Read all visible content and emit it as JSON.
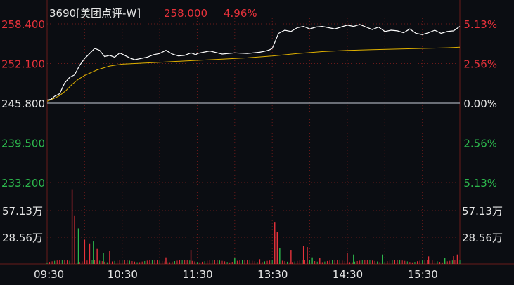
{
  "header": {
    "stock": "3690[美团点评-W]",
    "price": "258.000",
    "change_pct": "4.96%"
  },
  "colors": {
    "background": "#0b0d12",
    "up": "#e8323b",
    "down": "#2db84d",
    "price_line": "#ffffff",
    "avg_line": "#e0b100",
    "grid": "#6a1a1a",
    "text": "#e6e6e6"
  },
  "chart_data": {
    "type": "line",
    "y_left_labels": [
      "258.400",
      "252.100",
      "245.800",
      "239.500",
      "233.200"
    ],
    "y_right_labels": [
      "5.13%",
      "2.56%",
      "0.00%",
      "2.56%",
      "5.13%"
    ],
    "ylim": [
      233.2,
      258.4
    ],
    "base_price": 245.8,
    "volume_labels": [
      "57.13万",
      "28.56万"
    ],
    "volume_label_values": [
      57.13,
      28.56
    ],
    "volume_max": 85.7,
    "x_ticks": [
      "09:30",
      "10:30",
      "11:30",
      "13:30",
      "14:30",
      "15:30"
    ],
    "x_tick_minutes": [
      0,
      60,
      120,
      180,
      240,
      300
    ],
    "x_total_minutes": 330,
    "series": [
      {
        "key": "price",
        "x": [
          0,
          3,
          6,
          10,
          14,
          18,
          22,
          26,
          30,
          34,
          38,
          42,
          46,
          50,
          54,
          58,
          62,
          66,
          70,
          75,
          80,
          85,
          90,
          95,
          100,
          105,
          110,
          115,
          119,
          120,
          130,
          140,
          150,
          160,
          170,
          175,
          178,
          180,
          185,
          190,
          195,
          200,
          205,
          210,
          215,
          220,
          225,
          230,
          235,
          240,
          245,
          250,
          255,
          260,
          265,
          270,
          275,
          280,
          285,
          290,
          295,
          300,
          305,
          310,
          315,
          320,
          325,
          330
        ],
        "values": [
          246.3,
          246.4,
          246.9,
          247.3,
          249.0,
          249.9,
          250.3,
          251.8,
          252.9,
          253.7,
          254.5,
          254.2,
          253.2,
          253.4,
          253.1,
          253.8,
          253.4,
          253.0,
          252.7,
          252.9,
          253.1,
          253.5,
          253.7,
          254.2,
          253.6,
          253.3,
          253.4,
          253.8,
          253.5,
          253.7,
          254.1,
          253.6,
          253.8,
          253.7,
          253.9,
          254.1,
          254.3,
          254.5,
          256.9,
          257.4,
          257.2,
          257.8,
          258.0,
          257.6,
          257.9,
          258.0,
          257.8,
          257.6,
          257.9,
          258.2,
          258.0,
          258.3,
          257.9,
          257.5,
          257.9,
          257.2,
          257.4,
          257.3,
          257.0,
          257.6,
          256.9,
          256.7,
          257.0,
          257.4,
          256.9,
          257.2,
          257.3,
          258.0
        ]
      },
      {
        "key": "average",
        "x": [
          0,
          5,
          10,
          15,
          20,
          25,
          30,
          40,
          50,
          60,
          70,
          80,
          90,
          100,
          110,
          120,
          140,
          160,
          180,
          200,
          220,
          240,
          260,
          280,
          300,
          320,
          330
        ],
        "values": [
          246.1,
          246.5,
          247.0,
          247.8,
          248.8,
          249.6,
          250.2,
          251.1,
          251.7,
          252.0,
          252.1,
          252.2,
          252.3,
          252.4,
          252.5,
          252.6,
          252.8,
          253.0,
          253.3,
          253.7,
          254.0,
          254.2,
          254.3,
          254.4,
          254.5,
          254.6,
          254.7
        ]
      }
    ],
    "volume": {
      "bars": [
        {
          "t": 20,
          "v": 80,
          "c": "up"
        },
        {
          "t": 22,
          "v": 52,
          "c": "up"
        },
        {
          "t": 25,
          "v": 38,
          "c": "down"
        },
        {
          "t": 30,
          "v": 26,
          "c": "up"
        },
        {
          "t": 34,
          "v": 22,
          "c": "up"
        },
        {
          "t": 37,
          "v": 24,
          "c": "down"
        },
        {
          "t": 40,
          "v": 16,
          "c": "up"
        },
        {
          "t": 45,
          "v": 12,
          "c": "down"
        },
        {
          "t": 50,
          "v": 14,
          "c": "up"
        },
        {
          "t": 95,
          "v": 7,
          "c": "up"
        },
        {
          "t": 115,
          "v": 15,
          "c": "up"
        },
        {
          "t": 150,
          "v": 6,
          "c": "down"
        },
        {
          "t": 170,
          "v": 5,
          "c": "up"
        },
        {
          "t": 182,
          "v": 45,
          "c": "up"
        },
        {
          "t": 184,
          "v": 34,
          "c": "up"
        },
        {
          "t": 186,
          "v": 17,
          "c": "down"
        },
        {
          "t": 195,
          "v": 15,
          "c": "up"
        },
        {
          "t": 205,
          "v": 19,
          "c": "up"
        },
        {
          "t": 208,
          "v": 18,
          "c": "up"
        },
        {
          "t": 212,
          "v": 7,
          "c": "down"
        },
        {
          "t": 218,
          "v": 6,
          "c": "up"
        },
        {
          "t": 240,
          "v": 12,
          "c": "up"
        },
        {
          "t": 245,
          "v": 10,
          "c": "down"
        },
        {
          "t": 268,
          "v": 10,
          "c": "down"
        },
        {
          "t": 305,
          "v": 8,
          "c": "up"
        },
        {
          "t": 318,
          "v": 6,
          "c": "down"
        },
        {
          "t": 325,
          "v": 9,
          "c": "up"
        },
        {
          "t": 328,
          "v": 10,
          "c": "up"
        }
      ],
      "baseline": 4
    }
  }
}
